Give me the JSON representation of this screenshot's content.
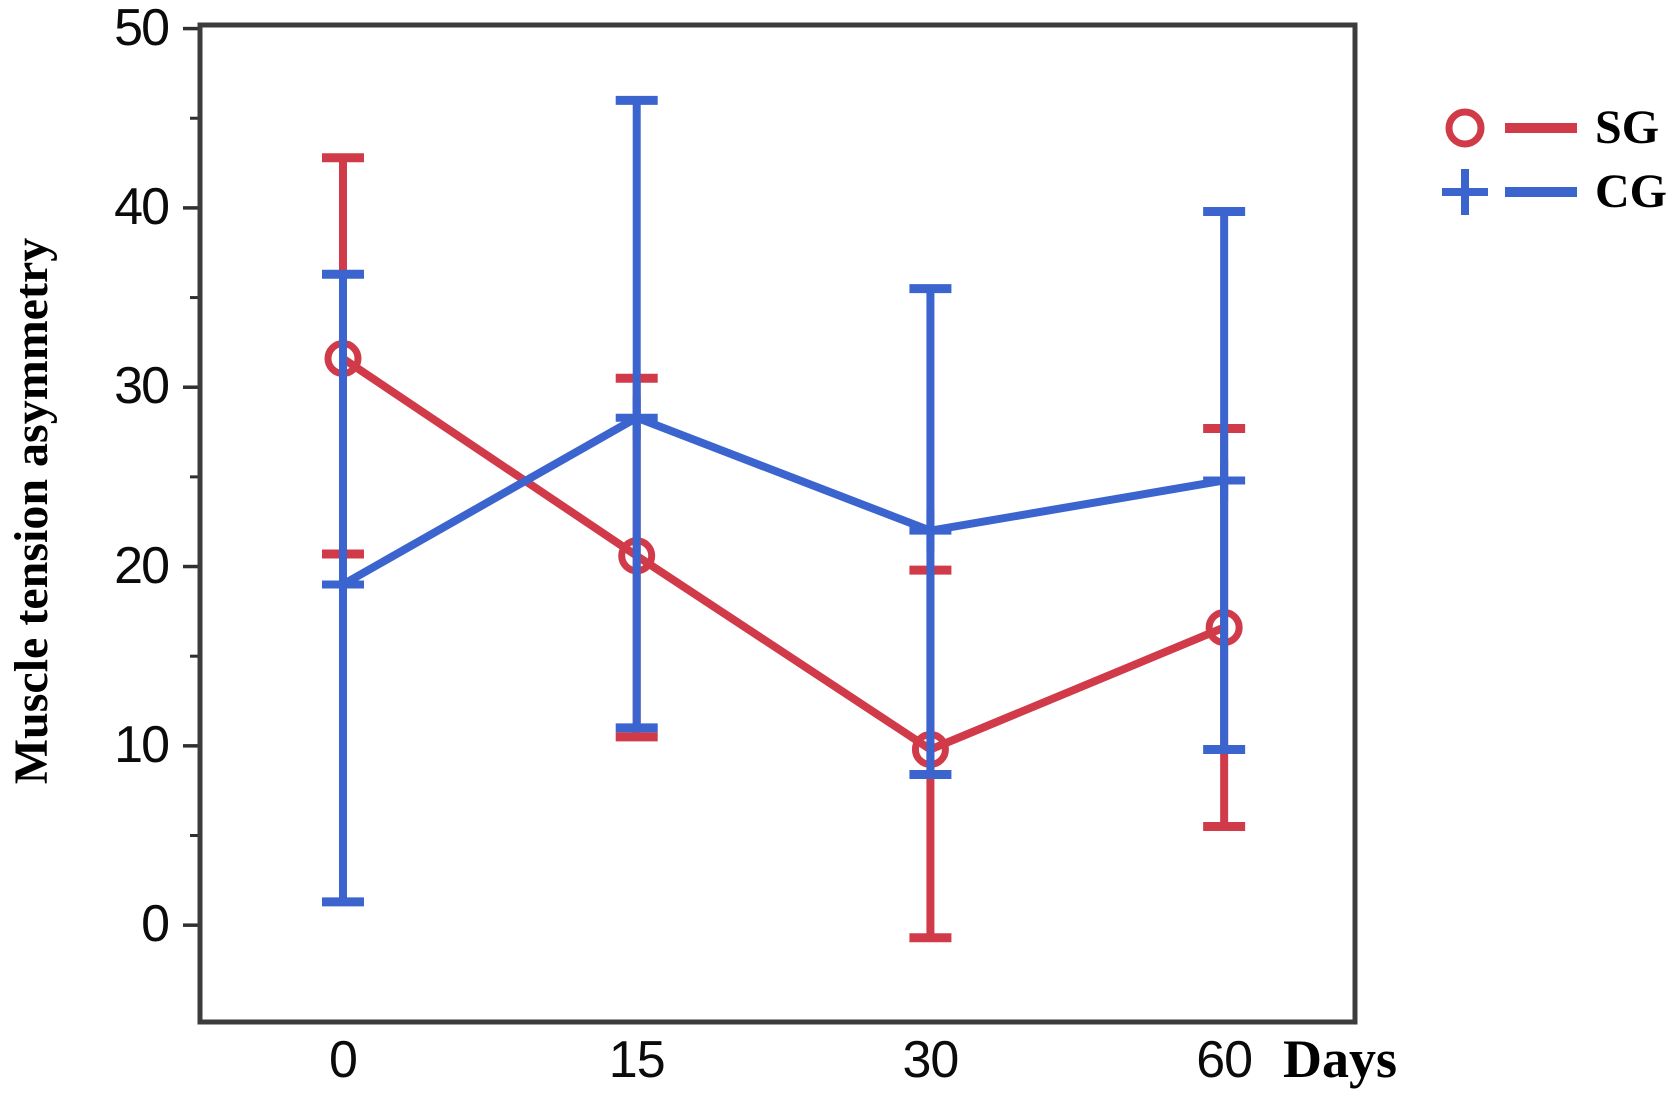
{
  "figure": {
    "background": "#ffffff",
    "frame_color": "#3c3c3c",
    "tick_color": "#2f2f2f"
  },
  "chart_data": {
    "type": "line",
    "title": "",
    "xlabel": "Days",
    "ylabel": "Muscle tension asymmetry",
    "categories": [
      "0",
      "15",
      "30",
      "60"
    ],
    "y_tick_labels": [
      "0",
      "10",
      "20",
      "30",
      "40",
      "50"
    ],
    "y_ticks_major": [
      0,
      10,
      20,
      30,
      40,
      50
    ],
    "y_ticks_minor": [
      5,
      15,
      25,
      35,
      45
    ],
    "ylim": [
      -5.4,
      50.2
    ],
    "grid": false,
    "legend_position": "top-right",
    "series": [
      {
        "name": "SG",
        "marker": "circle",
        "color": "#d13b49",
        "values": [
          31.6,
          20.6,
          9.8,
          16.6
        ],
        "error_upper": [
          42.8,
          30.5,
          19.8,
          27.7
        ],
        "error_lower": [
          20.7,
          10.5,
          -0.7,
          5.5
        ]
      },
      {
        "name": "CG",
        "marker": "plus",
        "color": "#3b64cf",
        "values": [
          19.0,
          28.3,
          22.0,
          24.8
        ],
        "error_upper": [
          36.3,
          46.0,
          35.5,
          39.8
        ],
        "error_lower": [
          1.3,
          11.0,
          8.4,
          9.8
        ]
      }
    ]
  }
}
